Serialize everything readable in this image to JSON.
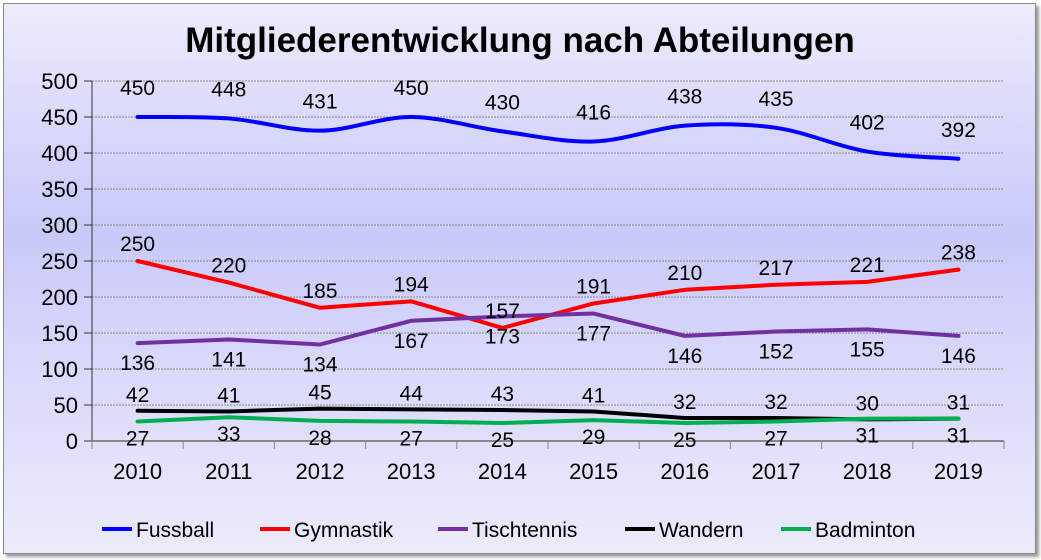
{
  "chart_data": {
    "type": "line",
    "title": "Mitgliederentwicklung nach Abteilungen",
    "xlabel": "",
    "ylabel": "",
    "categories": [
      "2010",
      "2011",
      "2012",
      "2013",
      "2014",
      "2015",
      "2016",
      "2017",
      "2018",
      "2019"
    ],
    "ylim": [
      0,
      500
    ],
    "yticks": [
      0,
      50,
      100,
      150,
      200,
      250,
      300,
      350,
      400,
      450,
      500
    ],
    "grid": true,
    "legend_position": "bottom",
    "series": [
      {
        "name": "Fussball",
        "color": "#0000ff",
        "values": [
          450,
          448,
          431,
          450,
          430,
          416,
          438,
          435,
          402,
          392
        ]
      },
      {
        "name": "Gymnastik",
        "color": "#ff0000",
        "values": [
          250,
          220,
          185,
          194,
          157,
          191,
          210,
          217,
          221,
          238
        ]
      },
      {
        "name": "Tischtennis",
        "color": "#7030a0",
        "values": [
          136,
          141,
          134,
          167,
          173,
          177,
          146,
          152,
          155,
          146
        ]
      },
      {
        "name": "Wandern",
        "color": "#000000",
        "values": [
          42,
          41,
          45,
          44,
          43,
          41,
          32,
          32,
          30,
          31
        ]
      },
      {
        "name": "Badminton",
        "color": "#00b050",
        "values": [
          27,
          33,
          28,
          27,
          25,
          29,
          25,
          27,
          31,
          31
        ]
      }
    ]
  }
}
